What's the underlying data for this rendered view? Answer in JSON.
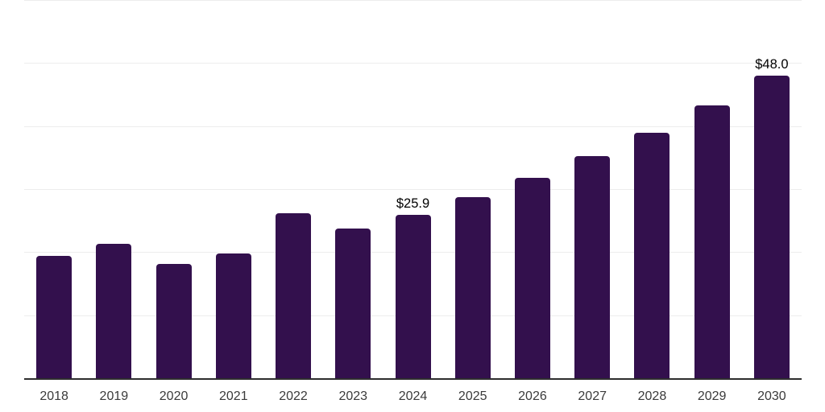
{
  "chart_data": {
    "type": "bar",
    "categories": [
      "2018",
      "2019",
      "2020",
      "2021",
      "2022",
      "2023",
      "2024",
      "2025",
      "2026",
      "2027",
      "2028",
      "2029",
      "2030"
    ],
    "values": [
      19.4,
      21.3,
      18.1,
      19.8,
      26.2,
      23.7,
      25.9,
      28.7,
      31.8,
      35.2,
      39.0,
      43.3,
      48.0
    ],
    "data_labels": [
      null,
      null,
      null,
      null,
      null,
      null,
      "$25.9",
      null,
      null,
      null,
      null,
      null,
      "$48.0"
    ],
    "ylim": [
      0,
      60
    ],
    "gridline_step": 10,
    "grid_on": true,
    "legend_position": "none",
    "y_tick_labels_visible": false,
    "colors": {
      "bar": "#33104d",
      "grid": "#ededed",
      "axis": "#2e2e2e",
      "tick_label": "#3a3a3a",
      "data_label": "#000000",
      "background": "#ffffff"
    }
  }
}
